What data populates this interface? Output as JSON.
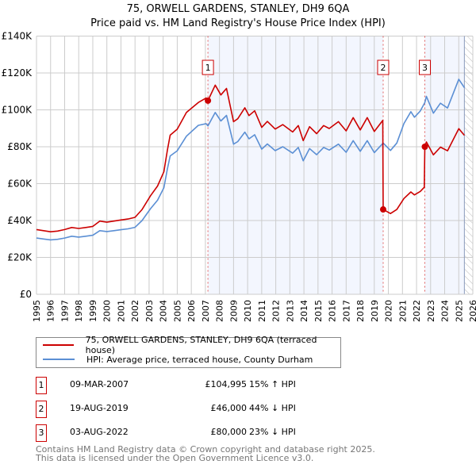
{
  "chart_data": {
    "type": "line",
    "title": "75, ORWELL GARDENS, STANLEY, DH9 6QA",
    "subtitle": "Price paid vs. HM Land Registry's House Price Index (HPI)",
    "xlim": [
      1995,
      2026
    ],
    "ylim": [
      0,
      140000
    ],
    "yticks": [
      0,
      20000,
      40000,
      60000,
      80000,
      100000,
      120000,
      140000
    ],
    "ytick_labels": [
      "£0",
      "£20K",
      "£40K",
      "£60K",
      "£80K",
      "£100K",
      "£120K",
      "£140K"
    ],
    "xticks": [
      "1995",
      "1996",
      "1997",
      "1998",
      "1999",
      "2000",
      "2001",
      "2002",
      "2003",
      "2004",
      "2005",
      "2006",
      "2007",
      "2008",
      "2009",
      "2010",
      "2011",
      "2012",
      "2013",
      "2014",
      "2015",
      "2016",
      "2017",
      "2018",
      "2019",
      "2020",
      "2021",
      "2022",
      "2023",
      "2024",
      "2025",
      "2026"
    ],
    "grid": true,
    "data_end": 2025.4,
    "series": [
      {
        "name": "75, ORWELL GARDENS, STANLEY, DH9 6QA (terraced house)",
        "color": "#cc0000",
        "points": [
          [
            1995.0,
            35100
          ],
          [
            1995.5,
            34500
          ],
          [
            1996.0,
            33900
          ],
          [
            1996.5,
            34300
          ],
          [
            1997.0,
            35100
          ],
          [
            1997.5,
            36200
          ],
          [
            1998.0,
            35700
          ],
          [
            1998.5,
            36200
          ],
          [
            1999.0,
            36800
          ],
          [
            1999.5,
            39700
          ],
          [
            2000.0,
            39100
          ],
          [
            2000.5,
            39700
          ],
          [
            2001.0,
            40300
          ],
          [
            2001.5,
            40800
          ],
          [
            2002.0,
            41700
          ],
          [
            2002.5,
            46000
          ],
          [
            2003.1,
            53400
          ],
          [
            2003.6,
            58700
          ],
          [
            2004.05,
            66500
          ],
          [
            2004.3,
            78200
          ],
          [
            2004.5,
            86300
          ],
          [
            2005.0,
            89500
          ],
          [
            2005.65,
            98600
          ],
          [
            2006.5,
            104000
          ],
          [
            2007.05,
            106400
          ],
          [
            2007.18,
            104995
          ],
          [
            2007.7,
            113400
          ],
          [
            2008.1,
            108100
          ],
          [
            2008.5,
            111600
          ],
          [
            2009.0,
            93600
          ],
          [
            2009.3,
            95200
          ],
          [
            2009.8,
            101100
          ],
          [
            2010.1,
            96900
          ],
          [
            2010.5,
            99500
          ],
          [
            2011.0,
            90500
          ],
          [
            2011.4,
            93700
          ],
          [
            2011.96,
            89600
          ],
          [
            2012.5,
            92000
          ],
          [
            2013.2,
            88000
          ],
          [
            2013.6,
            91500
          ],
          [
            2013.95,
            83300
          ],
          [
            2014.4,
            90900
          ],
          [
            2014.9,
            87100
          ],
          [
            2015.4,
            91500
          ],
          [
            2015.8,
            89900
          ],
          [
            2016.45,
            93600
          ],
          [
            2017.0,
            88600
          ],
          [
            2017.5,
            95800
          ],
          [
            2018.0,
            89100
          ],
          [
            2018.5,
            95800
          ],
          [
            2019.0,
            88300
          ],
          [
            2019.6,
            94300
          ],
          [
            2019.63,
            46000
          ],
          [
            2020.15,
            43800
          ],
          [
            2020.6,
            46000
          ],
          [
            2021.1,
            51900
          ],
          [
            2021.6,
            55500
          ],
          [
            2021.85,
            53900
          ],
          [
            2022.27,
            55800
          ],
          [
            2022.55,
            58000
          ],
          [
            2022.59,
            80000
          ],
          [
            2022.7,
            82600
          ],
          [
            2023.2,
            75600
          ],
          [
            2023.7,
            79800
          ],
          [
            2024.2,
            77800
          ],
          [
            2025.0,
            89800
          ],
          [
            2025.4,
            86200
          ]
        ]
      },
      {
        "name": "HPI: Average price, terraced house, County Durham",
        "color": "#5b8fd4",
        "points": [
          [
            1995.0,
            30500
          ],
          [
            1995.5,
            30000
          ],
          [
            1996.0,
            29500
          ],
          [
            1996.5,
            29800
          ],
          [
            1997.0,
            30500
          ],
          [
            1997.5,
            31500
          ],
          [
            1998.0,
            31000
          ],
          [
            1998.5,
            31500
          ],
          [
            1999.0,
            32000
          ],
          [
            1999.5,
            34500
          ],
          [
            2000.0,
            34000
          ],
          [
            2000.5,
            34500
          ],
          [
            2001.0,
            35000
          ],
          [
            2001.5,
            35500
          ],
          [
            2002.0,
            36300
          ],
          [
            2002.5,
            40000
          ],
          [
            2003.1,
            46400
          ],
          [
            2003.6,
            51000
          ],
          [
            2004.05,
            57800
          ],
          [
            2004.3,
            68000
          ],
          [
            2004.5,
            75000
          ],
          [
            2005.0,
            77800
          ],
          [
            2005.65,
            85700
          ],
          [
            2006.5,
            91600
          ],
          [
            2007.05,
            92500
          ],
          [
            2007.18,
            91300
          ],
          [
            2007.7,
            98600
          ],
          [
            2008.1,
            94000
          ],
          [
            2008.5,
            97000
          ],
          [
            2009.0,
            81400
          ],
          [
            2009.3,
            82800
          ],
          [
            2009.8,
            87900
          ],
          [
            2010.1,
            84300
          ],
          [
            2010.5,
            86500
          ],
          [
            2011.0,
            78700
          ],
          [
            2011.4,
            81500
          ],
          [
            2011.96,
            77900
          ],
          [
            2012.5,
            80000
          ],
          [
            2013.2,
            76500
          ],
          [
            2013.6,
            79600
          ],
          [
            2013.95,
            72400
          ],
          [
            2014.4,
            79000
          ],
          [
            2014.9,
            75700
          ],
          [
            2015.4,
            79600
          ],
          [
            2015.8,
            78200
          ],
          [
            2016.45,
            81400
          ],
          [
            2017.0,
            77000
          ],
          [
            2017.5,
            83300
          ],
          [
            2018.0,
            77500
          ],
          [
            2018.5,
            83300
          ],
          [
            2019.0,
            76800
          ],
          [
            2019.63,
            82000
          ],
          [
            2020.15,
            78000
          ],
          [
            2020.6,
            82000
          ],
          [
            2021.1,
            92500
          ],
          [
            2021.6,
            99000
          ],
          [
            2021.85,
            96000
          ],
          [
            2022.27,
            99400
          ],
          [
            2022.59,
            104000
          ],
          [
            2022.7,
            107300
          ],
          [
            2023.2,
            98200
          ],
          [
            2023.7,
            103600
          ],
          [
            2024.2,
            101000
          ],
          [
            2025.0,
            116600
          ],
          [
            2025.4,
            112000
          ]
        ]
      }
    ],
    "sales": [
      {
        "label": "1",
        "x": 2007.18,
        "y": 104995
      },
      {
        "label": "2",
        "x": 2019.63,
        "y": 46000
      },
      {
        "label": "3",
        "x": 2022.59,
        "y": 80000
      }
    ]
  },
  "legend": {
    "property": "75, ORWELL GARDENS, STANLEY, DH9 6QA (terraced house)",
    "hpi": "HPI: Average price, terraced house, County Durham"
  },
  "transactions": [
    {
      "num": "1",
      "date": "09-MAR-2007",
      "price": "£104,995",
      "hpi": "15% ↑ HPI"
    },
    {
      "num": "2",
      "date": "19-AUG-2019",
      "price": "£46,000",
      "hpi": "44% ↓ HPI"
    },
    {
      "num": "3",
      "date": "03-AUG-2022",
      "price": "£80,000",
      "hpi": "23% ↓ HPI"
    }
  ],
  "footer": {
    "line1": "Contains HM Land Registry data © Crown copyright and database right 2025.",
    "line2": "This data is licensed under the Open Government Licence v3.0."
  }
}
